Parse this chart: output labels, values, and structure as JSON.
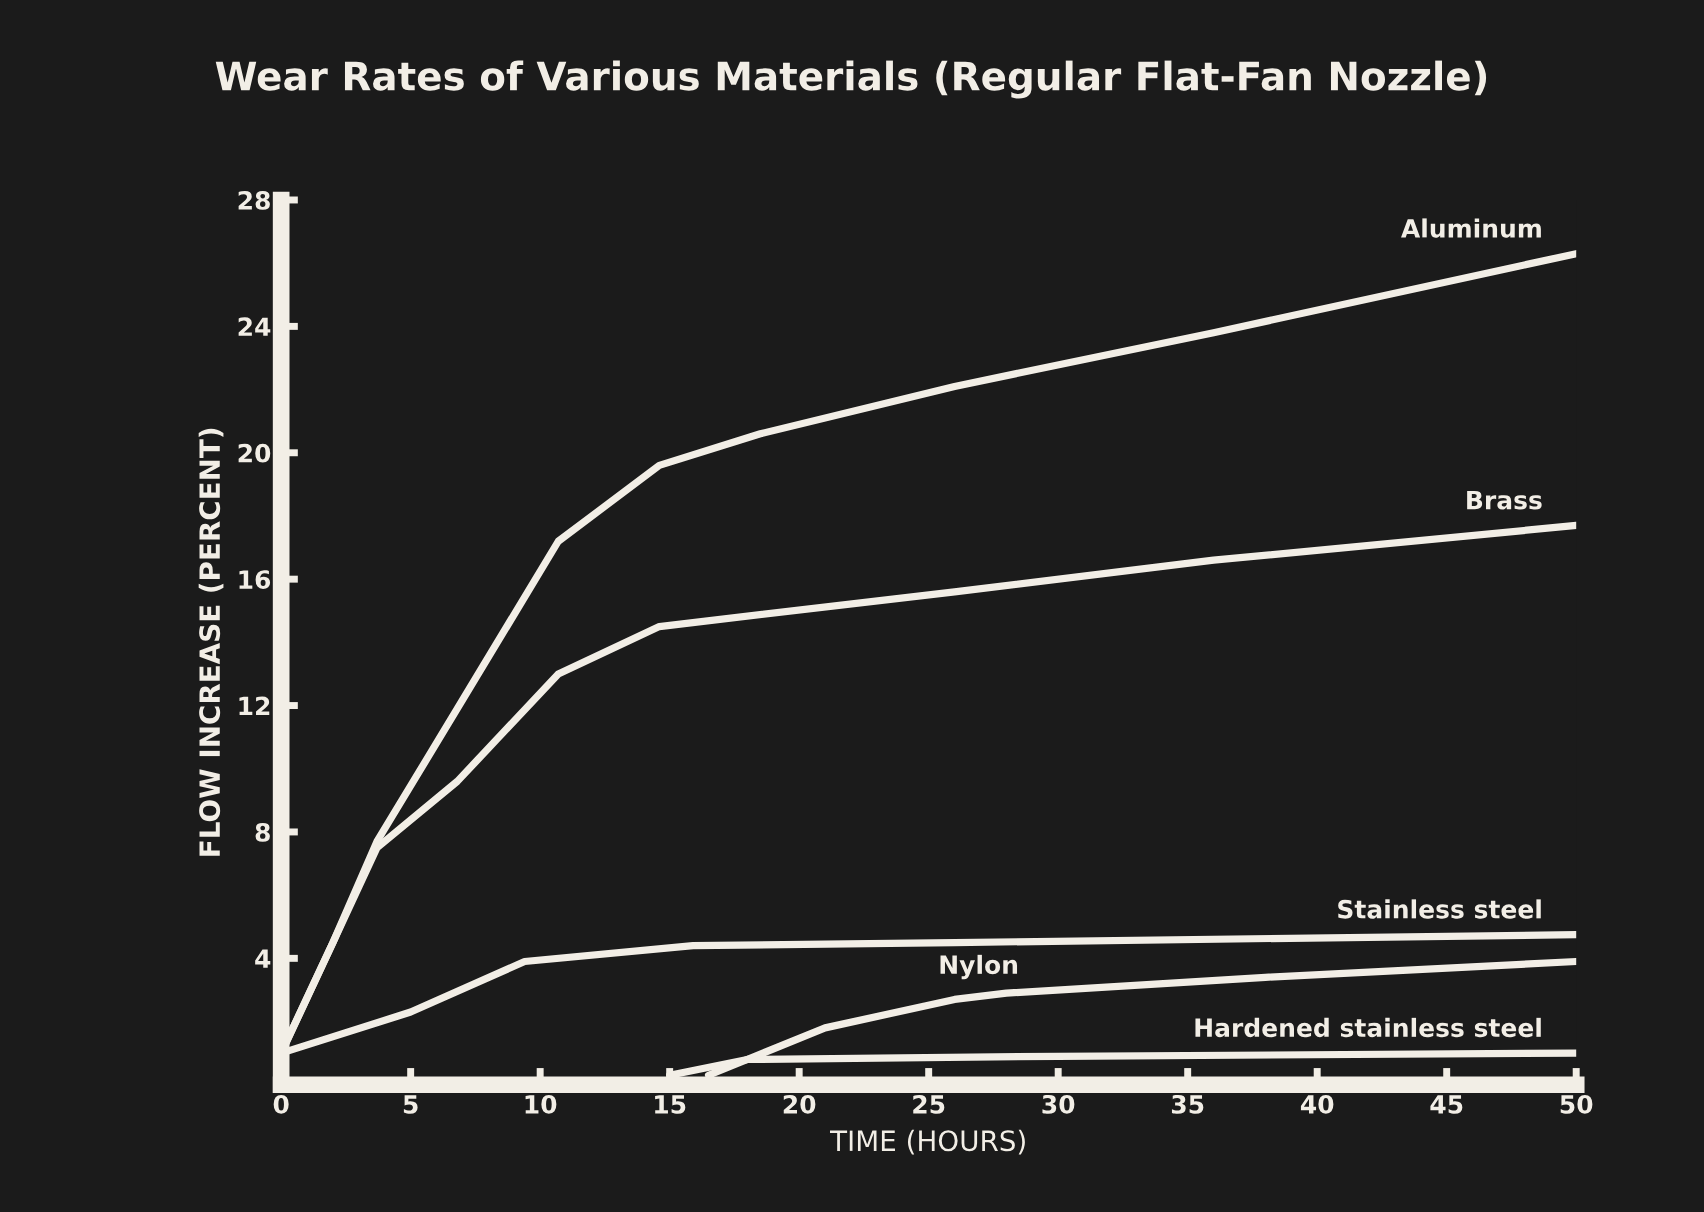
{
  "chart_data": {
    "type": "line",
    "title": "Wear Rates of Various Materials (Regular Flat-Fan Nozzle)",
    "xlabel": "TIME (HOURS)",
    "ylabel": "FLOW INCREASE (PERCENT)",
    "xlim": [
      0,
      50
    ],
    "ylim": [
      0,
      28
    ],
    "xticks": [
      0,
      5,
      10,
      15,
      20,
      25,
      30,
      35,
      40,
      45,
      50
    ],
    "yticks": [
      4,
      8,
      12,
      16,
      20,
      24,
      28
    ],
    "grid": false,
    "marker": "none",
    "line_style": "solid",
    "series": [
      {
        "name": "Aluminum",
        "color": "#f2eee6",
        "x": [
          0,
          2,
          3.7,
          6.8,
          10.7,
          14.6,
          18.5,
          26,
          36,
          50
        ],
        "values": [
          1,
          4.5,
          7.7,
          11.9,
          17.2,
          19.6,
          20.6,
          22.1,
          23.8,
          26.3
        ]
      },
      {
        "name": "Brass",
        "color": "#f2eee6",
        "x": [
          0,
          2,
          3.7,
          6.8,
          10.7,
          14.6,
          26,
          36,
          50
        ],
        "values": [
          1,
          4.5,
          7.5,
          9.6,
          13.0,
          14.5,
          15.6,
          16.6,
          17.7
        ]
      },
      {
        "name": "Stainless steel",
        "color": "#f2eee6",
        "x": [
          0,
          5,
          9.4,
          15.9,
          26,
          50
        ],
        "values": [
          1,
          2.3,
          3.9,
          4.4,
          4.5,
          4.75
        ]
      },
      {
        "name": "Nylon",
        "color": "#f2eee6",
        "x": [
          16.5,
          21,
          26,
          28,
          38,
          50
        ],
        "values": [
          0.3,
          1.8,
          2.7,
          2.9,
          3.4,
          3.9
        ]
      },
      {
        "name": "Hardened stainless steel",
        "color": "#f2eee6",
        "x": [
          15,
          18,
          30,
          50
        ],
        "values": [
          0.3,
          0.8,
          0.9,
          1.0
        ]
      }
    ]
  }
}
